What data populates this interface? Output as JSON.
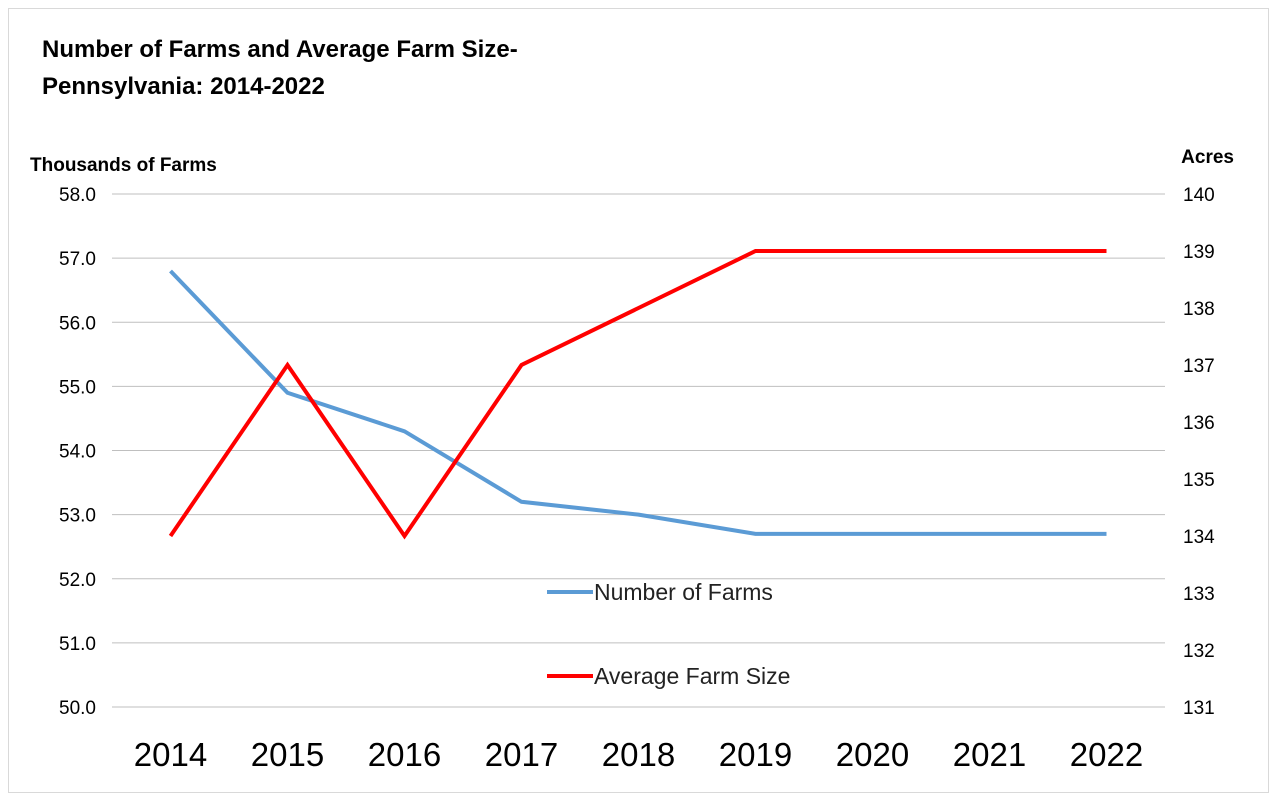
{
  "chart_data": {
    "type": "line",
    "title": "Number of Farms and Average Farm Size-\nPennsylvania: 2014-2022",
    "title_lines": [
      "Number of Farms and Average Farm Size-",
      "Pennsylvania: 2014-2022"
    ],
    "ylabel_left": "Thousands of Farms",
    "ylabel_right": "Acres",
    "x": [
      "2014",
      "2015",
      "2016",
      "2017",
      "2018",
      "2019",
      "2020",
      "2021",
      "2022"
    ],
    "ylim_left": [
      50,
      58
    ],
    "ylim_right": [
      131,
      140
    ],
    "yticks_left": [
      "50.0",
      "51.0",
      "52.0",
      "53.0",
      "54.0",
      "55.0",
      "56.0",
      "57.0",
      "58.0"
    ],
    "yticks_right": [
      "131",
      "132",
      "133",
      "134",
      "135",
      "136",
      "137",
      "138",
      "139",
      "140"
    ],
    "grid": true,
    "legend_position": "center",
    "series": [
      {
        "name": "Number of Farms",
        "axis": "left",
        "color": "#5b9bd5",
        "values": [
          56.8,
          54.9,
          54.3,
          53.2,
          53.0,
          52.7,
          52.7,
          52.7,
          52.7
        ]
      },
      {
        "name": "Average Farm Size",
        "axis": "right",
        "color": "#ff0000",
        "values": [
          134,
          137,
          134,
          137,
          138,
          139,
          139,
          139,
          139
        ]
      }
    ]
  }
}
